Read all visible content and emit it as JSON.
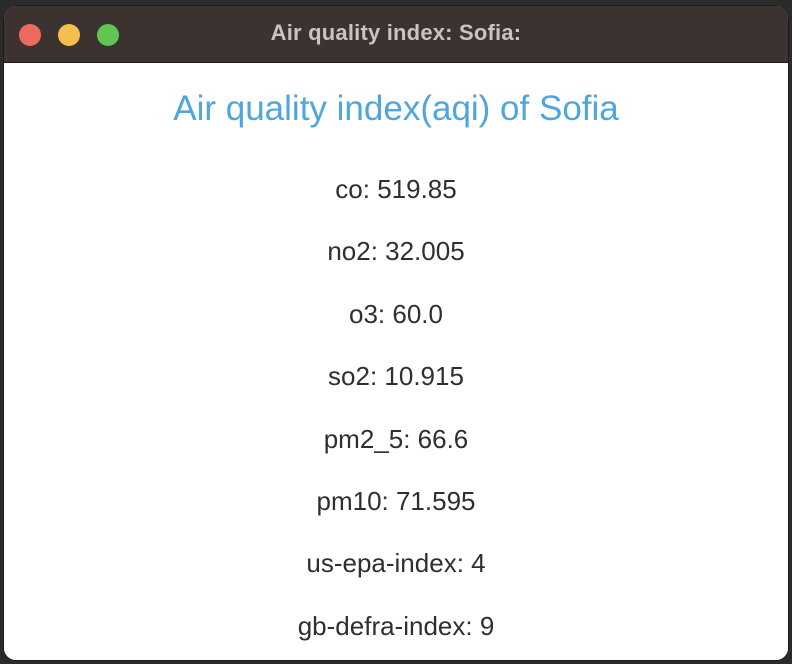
{
  "window": {
    "title": "Air quality index: Sofia:"
  },
  "heading": "Air quality index(aqi) of Sofia",
  "readings": [
    "co: 519.85",
    "no2: 32.005",
    "o3: 60.0",
    "so2: 10.915",
    "pm2_5: 66.6",
    "pm10: 71.595",
    "us-epa-index: 4",
    "gb-defra-index: 9"
  ],
  "colors": {
    "heading": "#4ea6dc",
    "titlebar": "#3c3331",
    "close": "#ed6a5e",
    "minimize": "#f4bf4f",
    "maximize": "#61c554"
  }
}
